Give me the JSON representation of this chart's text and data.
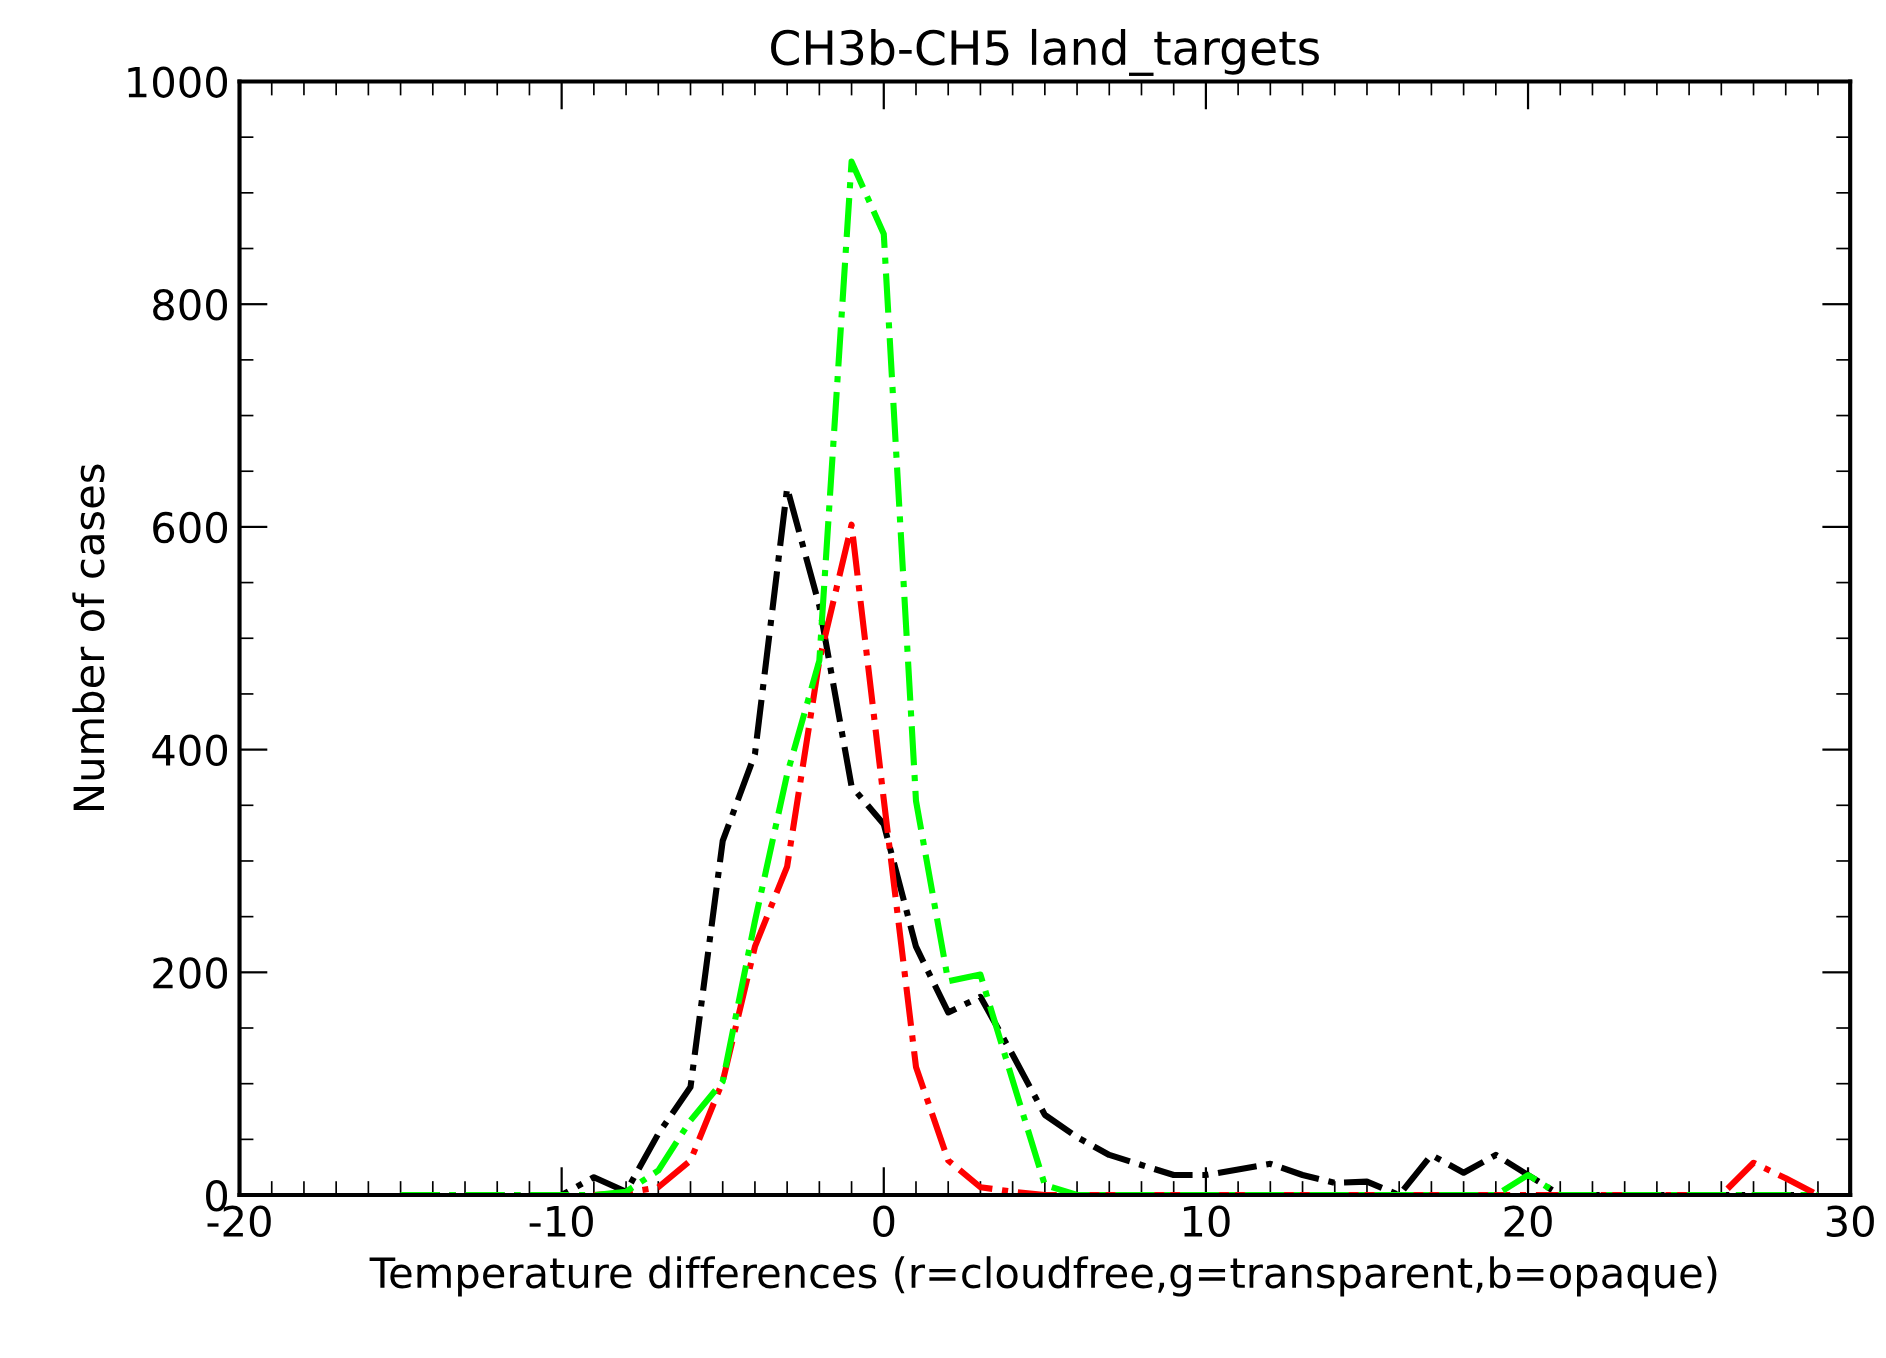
{
  "chart_data": {
    "type": "line",
    "title": "CH3b-CH5 land_targets",
    "xlabel": "Temperature differences (r=cloudfree,g=transparent,b=opaque)",
    "ylabel": "Number of cases",
    "x": [
      -15,
      -14,
      -13,
      -12,
      -11,
      -10,
      -9,
      -8,
      -7,
      -6,
      -5,
      -4,
      -3,
      -2,
      -1,
      0,
      1,
      2,
      3,
      4,
      5,
      6,
      7,
      8,
      9,
      10,
      11,
      12,
      13,
      14,
      15,
      16,
      17,
      18,
      19,
      20,
      21,
      22,
      23,
      24,
      25,
      26,
      27,
      28,
      29
    ],
    "series": [
      {
        "color": "#000000",
        "values": [
          0,
          0,
          0,
          0,
          0,
          0,
          16,
          3,
          55,
          97,
          318,
          396,
          635,
          529,
          367,
          333,
          223,
          164,
          178,
          126,
          72,
          52,
          36,
          27,
          18,
          18,
          23,
          28,
          18,
          11,
          12,
          0,
          36,
          20,
          36,
          18,
          0,
          0,
          0,
          0,
          0,
          0,
          0,
          0,
          0
        ]
      },
      {
        "color": "#ff0000",
        "values": [
          null,
          null,
          null,
          null,
          null,
          null,
          0,
          2,
          7,
          31,
          102,
          223,
          295,
          480,
          602,
          355,
          115,
          31,
          7,
          3,
          0,
          0,
          0,
          0,
          0,
          0,
          0,
          0,
          0,
          0,
          0,
          0,
          0,
          0,
          0,
          0,
          0,
          0,
          0,
          0,
          0,
          0,
          29,
          15,
          0
        ]
      },
      {
        "color": "#00ff00",
        "values": [
          0,
          0,
          0,
          0,
          0,
          0,
          0,
          3,
          22,
          67,
          102,
          246,
          378,
          480,
          928,
          863,
          354,
          192,
          198,
          103,
          9,
          0,
          0,
          0,
          0,
          0,
          0,
          0,
          0,
          0,
          0,
          0,
          0,
          0,
          0,
          18,
          0,
          0,
          0,
          0,
          0,
          0,
          0,
          0,
          0
        ]
      }
    ],
    "line_style": "dashdot",
    "xlim": [
      -20,
      30
    ],
    "xticks": [
      -20,
      -10,
      0,
      10,
      20,
      30
    ],
    "ylim": [
      0,
      1000
    ],
    "yticks": [
      0,
      200,
      400,
      600,
      800,
      1000
    ],
    "grid": false
  }
}
